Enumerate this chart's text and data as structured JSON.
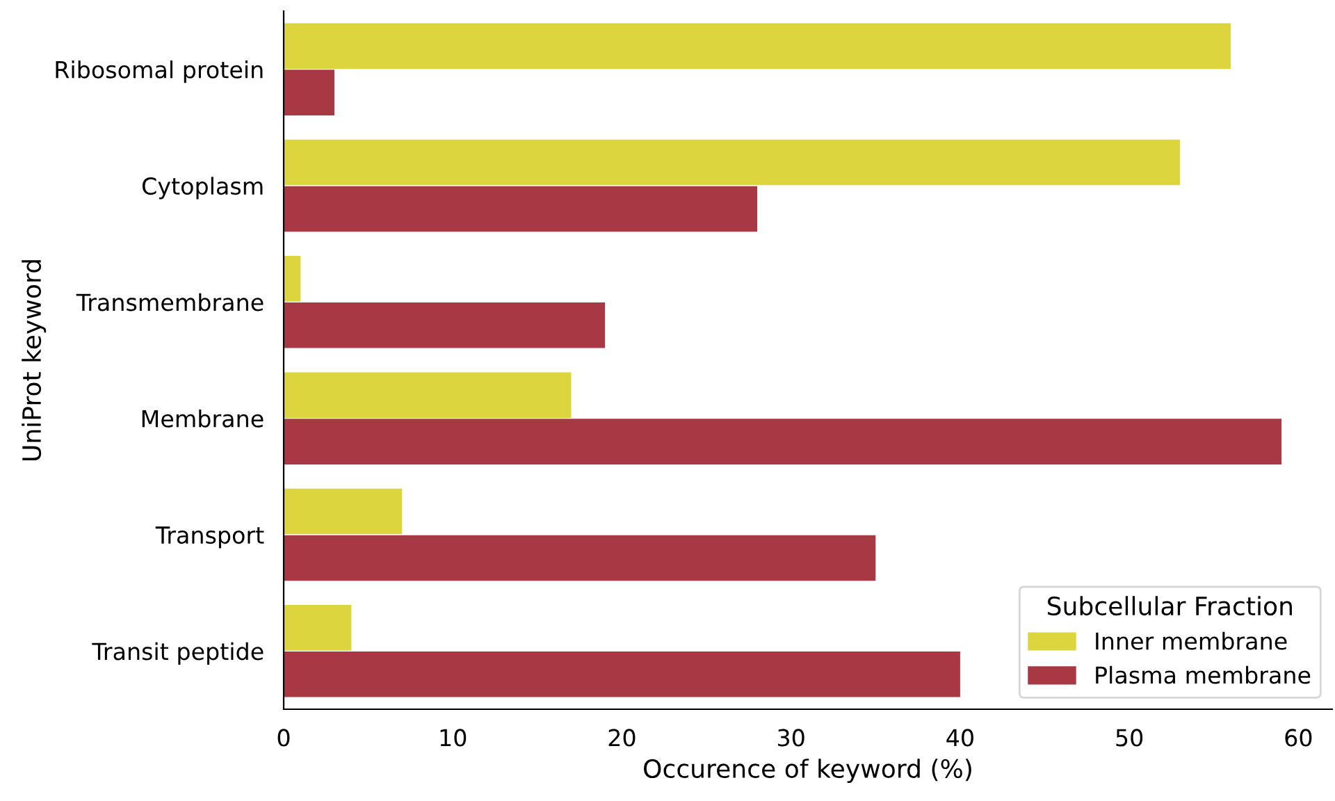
{
  "chart_data": {
    "type": "bar",
    "orientation": "horizontal",
    "xlabel": "Occurence of keyword (%)",
    "ylabel": "UniProt keyword",
    "legend_title": "Subcellular Fraction",
    "legend": "bottom right",
    "grid": false,
    "categories": [
      "Ribosomal protein",
      "Cytoplasm",
      "Transmembrane",
      "Membrane",
      "Transport",
      "Transit peptide"
    ],
    "series": [
      {
        "name": "Inner membrane",
        "color": "#dcd53d",
        "values": [
          56,
          53,
          1,
          17,
          7,
          4
        ]
      },
      {
        "name": "Plasma membrane",
        "color": "#a83844",
        "values": [
          3,
          28,
          19,
          59,
          35,
          40
        ]
      }
    ],
    "xlim": [
      0,
      62
    ],
    "xticks": [
      0,
      10,
      20,
      30,
      40,
      50,
      60
    ]
  }
}
